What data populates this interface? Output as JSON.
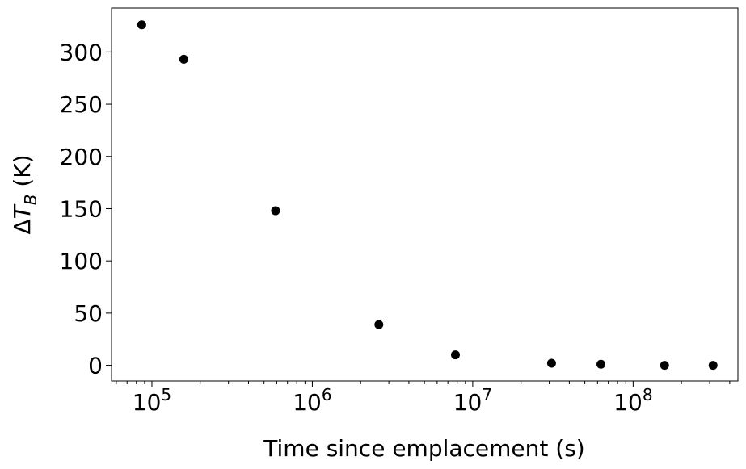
{
  "chart_data": {
    "type": "scatter",
    "title": "",
    "xlabel": "Time since emplacement (s)",
    "ylabel_delta": "Δ",
    "ylabel_var": "T",
    "ylabel_sub": "B",
    "ylabel_unit": " (K)",
    "xscale": "log",
    "xlim": [
      56000,
      450000000
    ],
    "ylim": [
      -15,
      342
    ],
    "grid": false,
    "marker_color": "#000000",
    "x_ticks": [
      {
        "base": "10",
        "exp": "5",
        "value": 100000
      },
      {
        "base": "10",
        "exp": "6",
        "value": 1000000
      },
      {
        "base": "10",
        "exp": "7",
        "value": 10000000
      },
      {
        "base": "10",
        "exp": "8",
        "value": 100000000
      }
    ],
    "y_ticks": [
      0,
      50,
      100,
      150,
      200,
      250,
      300
    ],
    "x": [
      86400,
      158000,
      590000,
      2600000,
      7800000,
      31000000,
      63000000,
      157000000,
      315000000
    ],
    "y": [
      326,
      293,
      148,
      39,
      10,
      2,
      1,
      0,
      0
    ]
  }
}
